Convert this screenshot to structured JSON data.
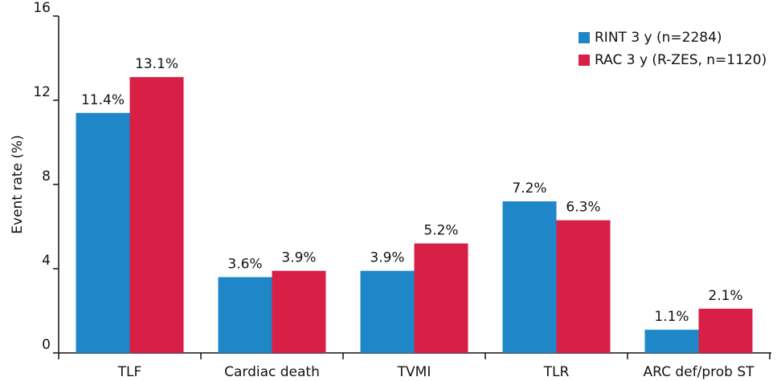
{
  "chart_data": {
    "type": "bar",
    "y_label": "Event rate (%)",
    "categories": [
      "TLF",
      "Cardiac death",
      "TVMI",
      "TLR",
      "ARC def/prob ST"
    ],
    "series": [
      {
        "name": "RINT 3 y (n=2284)",
        "color": "#1f86c8",
        "values": [
          11.4,
          3.6,
          3.9,
          7.2,
          1.1
        ],
        "value_labels": [
          "11.4%",
          "3.6%",
          "3.9%",
          "7.2%",
          "1.1%"
        ]
      },
      {
        "name": "RAC 3 y (R-ZES, n=1120)",
        "color": "#d81f46",
        "values": [
          13.1,
          3.9,
          5.2,
          6.3,
          2.1
        ],
        "value_labels": [
          "13.1%",
          "3.9%",
          "5.2%",
          "6.3%",
          "2.1%"
        ]
      }
    ],
    "ylim": [
      0,
      16
    ],
    "yticks": [
      0,
      4,
      8,
      12,
      16
    ],
    "legend": "top-right"
  }
}
